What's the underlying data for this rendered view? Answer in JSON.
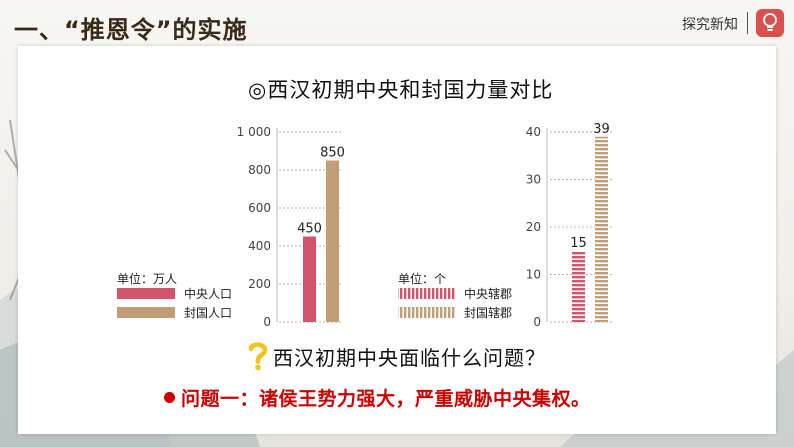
{
  "header": {
    "title": "一、“推恩令”的实施",
    "section_label": "探究新知",
    "bulb_icon": "lightbulb-icon"
  },
  "colors": {
    "central": "#d0566b",
    "fief": "#c29e76",
    "accent_red": "#cc0000"
  },
  "chart_heading": "◎西汉初期中央和封国力量对比",
  "chart_data": [
    {
      "type": "bar",
      "unit_label": "单位：万人",
      "yticks": [
        "1 000",
        "800",
        "600",
        "400",
        "200",
        "0"
      ],
      "ylim": [
        0,
        1000
      ],
      "grid": "dotted",
      "series": [
        {
          "name": "中央人口",
          "values": [
            450
          ]
        },
        {
          "name": "封国人口",
          "values": [
            850
          ]
        }
      ],
      "data_labels": [
        "450",
        "850"
      ],
      "legend_position": "left",
      "bar_style": "solid"
    },
    {
      "type": "bar",
      "unit_label": "单位：个",
      "yticks": [
        "40",
        "30",
        "20",
        "10",
        "0"
      ],
      "ylim": [
        0,
        40
      ],
      "grid": "dotted",
      "series": [
        {
          "name": "中央辖郡",
          "values": [
            15
          ]
        },
        {
          "name": "封国辖郡",
          "values": [
            39
          ]
        }
      ],
      "data_labels": [
        "15",
        "39"
      ],
      "legend_position": "left",
      "bar_style": "striped"
    }
  ],
  "question": "西汉初期中央面临什么问题？",
  "problem": "问题一：诸侯王势力强大，严重威胁中央集权。"
}
